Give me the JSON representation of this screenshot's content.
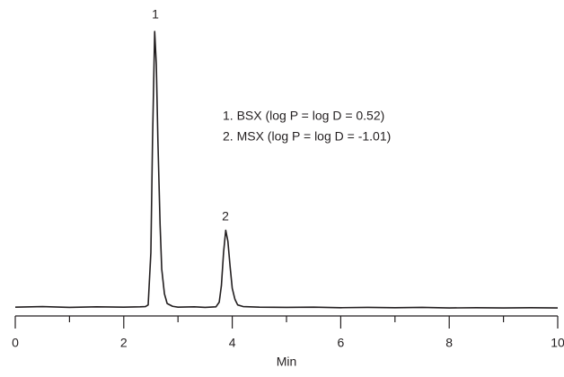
{
  "chart_data": {
    "type": "line",
    "x_label": "Min",
    "xlim": [
      0,
      10
    ],
    "xticks": [
      0,
      2,
      4,
      6,
      8,
      10
    ],
    "xminorticks": [
      1,
      3,
      5,
      7,
      9
    ],
    "ylim": [
      -3,
      100
    ],
    "grid": false,
    "peak_labels": [
      "1",
      "2"
    ],
    "annotations": [
      "1. BSX (log P = log D = 0.52)",
      "2. MSX (log P = log D = -1.01)"
    ],
    "x": [
      0,
      0.5,
      1,
      1.5,
      2,
      2.3,
      2.4,
      2.45,
      2.5,
      2.53,
      2.57,
      2.6,
      2.63,
      2.67,
      2.7,
      2.75,
      2.8,
      2.9,
      3.0,
      3.3,
      3.5,
      3.7,
      3.76,
      3.8,
      3.84,
      3.88,
      3.92,
      3.96,
      4.0,
      4.05,
      4.1,
      4.2,
      4.5,
      5,
      5.5,
      6,
      6.5,
      7,
      7.5,
      8,
      8.5,
      9,
      9.5,
      10
    ],
    "series": [
      {
        "color": "#231f20",
        "values": [
          0.2,
          0.4,
          0.1,
          0.3,
          0.2,
          0.3,
          0.4,
          1,
          20,
          60,
          100,
          88,
          60,
          30,
          14,
          5,
          1.5,
          0.5,
          0.2,
          0.3,
          0.1,
          0.3,
          2,
          8,
          20,
          28,
          24,
          15,
          7,
          3,
          1,
          0.4,
          0.2,
          0.1,
          0.2,
          0,
          0.1,
          0,
          0.1,
          -0.1,
          0,
          -0.1,
          0,
          -0.1
        ]
      }
    ]
  }
}
